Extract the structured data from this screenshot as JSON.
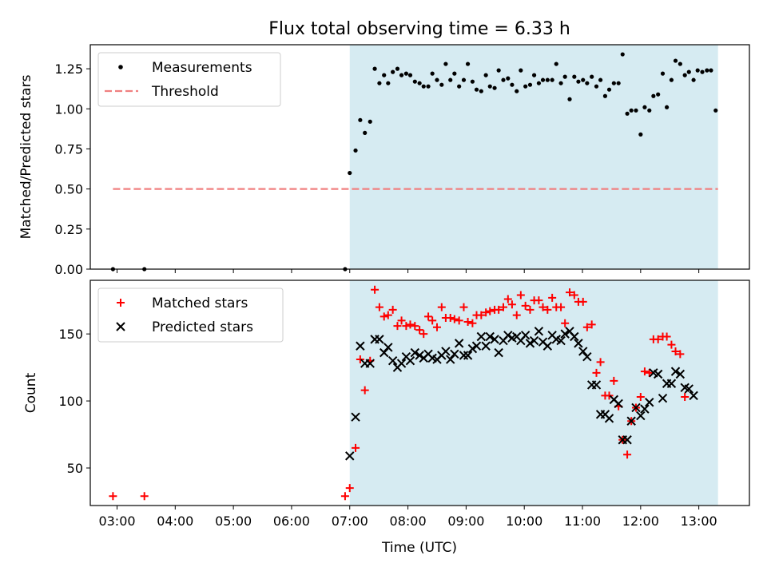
{
  "figure": {
    "title": "Flux total observing time = 6.33 h",
    "xlabel": "Time (UTC)",
    "x_ticks": [
      {
        "t": 3.0,
        "label": "03:00"
      },
      {
        "t": 4.0,
        "label": "04:00"
      },
      {
        "t": 5.0,
        "label": "05:00"
      },
      {
        "t": 6.0,
        "label": "06:00"
      },
      {
        "t": 7.0,
        "label": "07:00"
      },
      {
        "t": 8.0,
        "label": "08:00"
      },
      {
        "t": 9.0,
        "label": "09:00"
      },
      {
        "t": 10.0,
        "label": "10:00"
      },
      {
        "t": 11.0,
        "label": "11:00"
      },
      {
        "t": 12.0,
        "label": "12:00"
      },
      {
        "t": 13.0,
        "label": "13:00"
      }
    ],
    "shaded_region": {
      "t_start": 7.0,
      "t_end": 13.33,
      "color": "#add8e6"
    }
  },
  "chart_data": [
    {
      "type": "scatter",
      "panel": "top",
      "ylabel": "Matched/Predicted stars",
      "xlim": [
        2.54,
        13.87
      ],
      "ylim": [
        0.0,
        1.4
      ],
      "y_ticks": [
        {
          "v": 0.0,
          "label": "0.00"
        },
        {
          "v": 0.25,
          "label": "0.25"
        },
        {
          "v": 0.5,
          "label": "0.50"
        },
        {
          "v": 0.75,
          "label": "0.75"
        },
        {
          "v": 1.0,
          "label": "1.00"
        },
        {
          "v": 1.25,
          "label": "1.25"
        }
      ],
      "legend": {
        "position": "top-left",
        "entries": [
          {
            "label": "Measurements",
            "marker": "dot",
            "color": "#000000"
          },
          {
            "label": "Threshold",
            "marker": "dashed-line",
            "color": "#f08080"
          }
        ]
      },
      "threshold": {
        "y": 0.5,
        "x_start": 2.93,
        "x_end": 13.33,
        "color": "#f08080"
      },
      "series": [
        {
          "name": "Measurements",
          "color": "#000000",
          "points": [
            [
              2.93,
              0.0
            ],
            [
              3.47,
              0.0
            ],
            [
              6.92,
              0.0
            ],
            [
              7.0,
              0.6
            ],
            [
              7.1,
              0.74
            ],
            [
              7.18,
              0.93
            ],
            [
              7.26,
              0.85
            ],
            [
              7.35,
              0.92
            ],
            [
              7.43,
              1.25
            ],
            [
              7.51,
              1.16
            ],
            [
              7.59,
              1.21
            ],
            [
              7.66,
              1.16
            ],
            [
              7.74,
              1.23
            ],
            [
              7.82,
              1.25
            ],
            [
              7.89,
              1.21
            ],
            [
              7.97,
              1.22
            ],
            [
              8.04,
              1.21
            ],
            [
              8.12,
              1.17
            ],
            [
              8.2,
              1.16
            ],
            [
              8.27,
              1.14
            ],
            [
              8.35,
              1.14
            ],
            [
              8.42,
              1.22
            ],
            [
              8.5,
              1.18
            ],
            [
              8.58,
              1.15
            ],
            [
              8.65,
              1.28
            ],
            [
              8.73,
              1.18
            ],
            [
              8.8,
              1.22
            ],
            [
              8.88,
              1.14
            ],
            [
              8.96,
              1.18
            ],
            [
              9.03,
              1.28
            ],
            [
              9.11,
              1.17
            ],
            [
              9.18,
              1.12
            ],
            [
              9.26,
              1.11
            ],
            [
              9.34,
              1.21
            ],
            [
              9.41,
              1.14
            ],
            [
              9.49,
              1.13
            ],
            [
              9.56,
              1.24
            ],
            [
              9.64,
              1.18
            ],
            [
              9.72,
              1.19
            ],
            [
              9.79,
              1.15
            ],
            [
              9.87,
              1.11
            ],
            [
              9.94,
              1.24
            ],
            [
              10.02,
              1.14
            ],
            [
              10.1,
              1.15
            ],
            [
              10.17,
              1.21
            ],
            [
              10.25,
              1.16
            ],
            [
              10.32,
              1.18
            ],
            [
              10.4,
              1.18
            ],
            [
              10.48,
              1.18
            ],
            [
              10.55,
              1.28
            ],
            [
              10.63,
              1.16
            ],
            [
              10.7,
              1.2
            ],
            [
              10.78,
              1.06
            ],
            [
              10.86,
              1.2
            ],
            [
              10.93,
              1.17
            ],
            [
              11.01,
              1.18
            ],
            [
              11.08,
              1.16
            ],
            [
              11.16,
              1.2
            ],
            [
              11.24,
              1.14
            ],
            [
              11.31,
              1.18
            ],
            [
              11.39,
              1.08
            ],
            [
              11.46,
              1.12
            ],
            [
              11.54,
              1.16
            ],
            [
              11.62,
              1.16
            ],
            [
              11.69,
              1.34
            ],
            [
              11.77,
              0.97
            ],
            [
              11.84,
              0.99
            ],
            [
              11.92,
              0.99
            ],
            [
              12.0,
              0.84
            ],
            [
              12.07,
              1.01
            ],
            [
              12.15,
              0.99
            ],
            [
              12.22,
              1.08
            ],
            [
              12.3,
              1.09
            ],
            [
              12.38,
              1.22
            ],
            [
              12.45,
              1.01
            ],
            [
              12.53,
              1.18
            ],
            [
              12.6,
              1.3
            ],
            [
              12.68,
              1.28
            ],
            [
              12.76,
              1.21
            ],
            [
              12.83,
              1.23
            ],
            [
              12.91,
              1.18
            ],
            [
              12.98,
              1.24
            ],
            [
              13.06,
              1.23
            ],
            [
              13.14,
              1.24
            ],
            [
              13.21,
              1.24
            ],
            [
              13.29,
              0.99
            ]
          ]
        }
      ]
    },
    {
      "type": "scatter",
      "panel": "bottom",
      "ylabel": "Count",
      "xlim": [
        2.54,
        13.87
      ],
      "ylim": [
        22,
        190
      ],
      "y_ticks": [
        {
          "v": 50,
          "label": "50"
        },
        {
          "v": 100,
          "label": "100"
        },
        {
          "v": 150,
          "label": "150"
        }
      ],
      "legend": {
        "position": "top-left",
        "entries": [
          {
            "label": "Matched stars",
            "marker": "plus",
            "color": "#ff0000"
          },
          {
            "label": "Predicted stars",
            "marker": "x",
            "color": "#000000"
          }
        ]
      },
      "series": [
        {
          "name": "Matched stars",
          "marker": "plus",
          "color": "#ff0000",
          "points": [
            [
              2.93,
              29
            ],
            [
              3.47,
              29
            ],
            [
              6.92,
              29
            ],
            [
              7.0,
              35
            ],
            [
              7.1,
              65
            ],
            [
              7.18,
              131
            ],
            [
              7.26,
              108
            ],
            [
              7.35,
              130
            ],
            [
              7.43,
              183
            ],
            [
              7.51,
              170
            ],
            [
              7.59,
              163
            ],
            [
              7.66,
              164
            ],
            [
              7.74,
              168
            ],
            [
              7.82,
              156
            ],
            [
              7.89,
              160
            ],
            [
              7.97,
              156
            ],
            [
              8.04,
              157
            ],
            [
              8.12,
              156
            ],
            [
              8.2,
              153
            ],
            [
              8.27,
              150
            ],
            [
              8.35,
              163
            ],
            [
              8.42,
              160
            ],
            [
              8.5,
              155
            ],
            [
              8.58,
              170
            ],
            [
              8.65,
              162
            ],
            [
              8.73,
              162
            ],
            [
              8.8,
              161
            ],
            [
              8.88,
              160
            ],
            [
              8.96,
              170
            ],
            [
              9.03,
              159
            ],
            [
              9.11,
              158
            ],
            [
              9.18,
              164
            ],
            [
              9.26,
              164
            ],
            [
              9.34,
              166
            ],
            [
              9.41,
              167
            ],
            [
              9.49,
              168
            ],
            [
              9.56,
              168
            ],
            [
              9.64,
              170
            ],
            [
              9.72,
              176
            ],
            [
              9.79,
              172
            ],
            [
              9.87,
              164
            ],
            [
              9.94,
              179
            ],
            [
              10.02,
              171
            ],
            [
              10.1,
              168
            ],
            [
              10.17,
              175
            ],
            [
              10.25,
              175
            ],
            [
              10.32,
              170
            ],
            [
              10.4,
              168
            ],
            [
              10.48,
              177
            ],
            [
              10.55,
              170
            ],
            [
              10.63,
              170
            ],
            [
              10.7,
              158
            ],
            [
              10.78,
              181
            ],
            [
              10.86,
              179
            ],
            [
              10.93,
              174
            ],
            [
              11.01,
              174
            ],
            [
              11.08,
              155
            ],
            [
              11.16,
              157
            ],
            [
              11.24,
              121
            ],
            [
              11.31,
              129
            ],
            [
              11.39,
              104
            ],
            [
              11.46,
              104
            ],
            [
              11.54,
              115
            ],
            [
              11.62,
              96
            ],
            [
              11.69,
              71
            ],
            [
              11.77,
              60
            ],
            [
              11.84,
              85
            ],
            [
              11.92,
              95
            ],
            [
              12.0,
              103
            ],
            [
              12.07,
              122
            ],
            [
              12.15,
              121
            ],
            [
              12.22,
              146
            ],
            [
              12.3,
              146
            ],
            [
              12.38,
              148
            ],
            [
              12.45,
              148
            ],
            [
              12.53,
              142
            ],
            [
              12.6,
              137
            ],
            [
              12.68,
              135
            ],
            [
              12.76,
              103
            ]
          ]
        },
        {
          "name": "Predicted stars",
          "marker": "x",
          "color": "#000000",
          "points": [
            [
              7.0,
              59
            ],
            [
              7.1,
              88
            ],
            [
              7.18,
              141
            ],
            [
              7.26,
              128
            ],
            [
              7.35,
              128
            ],
            [
              7.43,
              146
            ],
            [
              7.51,
              146
            ],
            [
              7.59,
              136
            ],
            [
              7.66,
              140
            ],
            [
              7.74,
              130
            ],
            [
              7.82,
              125
            ],
            [
              7.89,
              128
            ],
            [
              7.97,
              133
            ],
            [
              8.04,
              130
            ],
            [
              8.12,
              136
            ],
            [
              8.2,
              134
            ],
            [
              8.27,
              132
            ],
            [
              8.35,
              135
            ],
            [
              8.42,
              132
            ],
            [
              8.5,
              131
            ],
            [
              8.58,
              134
            ],
            [
              8.65,
              137
            ],
            [
              8.73,
              131
            ],
            [
              8.8,
              135
            ],
            [
              8.88,
              143
            ],
            [
              8.96,
              134
            ],
            [
              9.03,
              134
            ],
            [
              9.11,
              139
            ],
            [
              9.18,
              141
            ],
            [
              9.26,
              148
            ],
            [
              9.34,
              141
            ],
            [
              9.41,
              148
            ],
            [
              9.49,
              146
            ],
            [
              9.56,
              136
            ],
            [
              9.64,
              145
            ],
            [
              9.72,
              149
            ],
            [
              9.79,
              147
            ],
            [
              9.87,
              148
            ],
            [
              9.94,
              145
            ],
            [
              10.02,
              149
            ],
            [
              10.1,
              143
            ],
            [
              10.17,
              145
            ],
            [
              10.25,
              152
            ],
            [
              10.32,
              144
            ],
            [
              10.4,
              141
            ],
            [
              10.48,
              149
            ],
            [
              10.55,
              146
            ],
            [
              10.63,
              145
            ],
            [
              10.7,
              150
            ],
            [
              10.78,
              152
            ],
            [
              10.86,
              148
            ],
            [
              10.93,
              143
            ],
            [
              11.01,
              137
            ],
            [
              11.08,
              133
            ],
            [
              11.16,
              112
            ],
            [
              11.24,
              112
            ],
            [
              11.31,
              90
            ],
            [
              11.39,
              90
            ],
            [
              11.46,
              87
            ],
            [
              11.54,
              101
            ],
            [
              11.62,
              98
            ],
            [
              11.69,
              71
            ],
            [
              11.77,
              71
            ],
            [
              11.84,
              85
            ],
            [
              11.92,
              95
            ],
            [
              12.0,
              89
            ],
            [
              12.07,
              94
            ],
            [
              12.15,
              99
            ],
            [
              12.22,
              121
            ],
            [
              12.3,
              120
            ],
            [
              12.38,
              102
            ],
            [
              12.45,
              113
            ],
            [
              12.53,
              113
            ],
            [
              12.6,
              122
            ],
            [
              12.68,
              120
            ],
            [
              12.76,
              110
            ],
            [
              12.83,
              109
            ],
            [
              12.91,
              104
            ]
          ]
        }
      ]
    }
  ]
}
